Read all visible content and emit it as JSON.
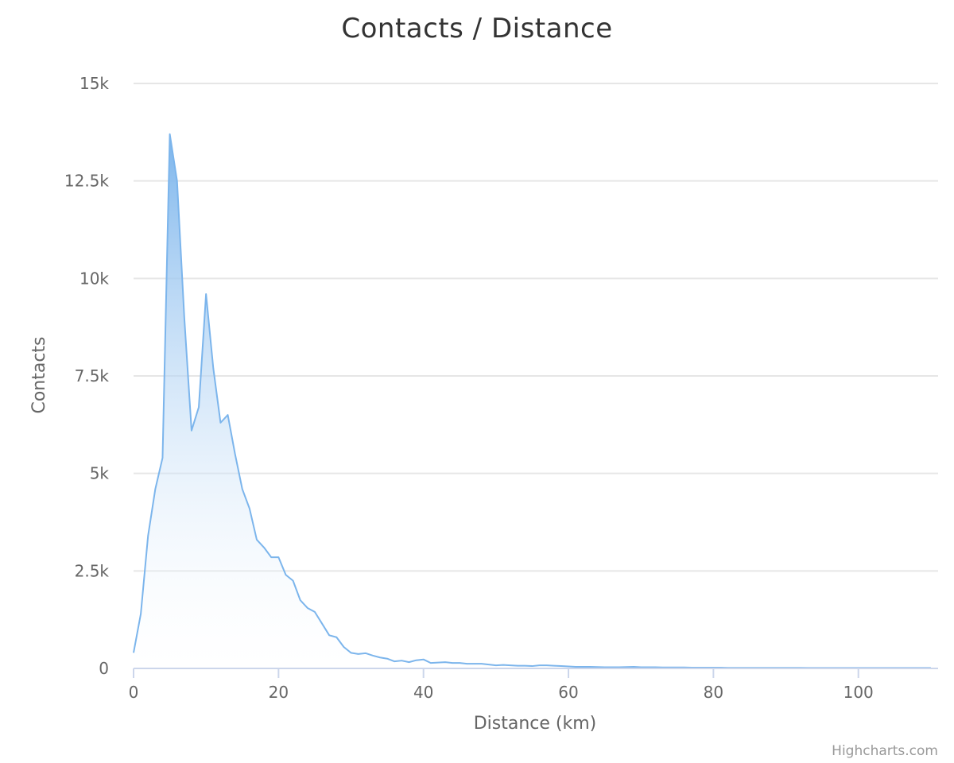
{
  "page": {
    "credits": "Highcharts.com"
  },
  "chart_data": {
    "type": "area",
    "title": "Contacts / Distance",
    "xlabel": "Distance (km)",
    "ylabel": "Contacts",
    "xlim": [
      0,
      111
    ],
    "ylim": [
      0,
      15000
    ],
    "x_ticks": [
      0,
      20,
      40,
      60,
      80,
      100
    ],
    "x_tick_labels": [
      "0",
      "20",
      "40",
      "60",
      "80",
      "100"
    ],
    "y_ticks": [
      0,
      2500,
      5000,
      7500,
      10000,
      12500,
      15000
    ],
    "y_tick_labels": [
      "0",
      "2.5k",
      "5k",
      "7.5k",
      "10k",
      "12.5k",
      "15k"
    ],
    "grid": true,
    "legend": "none",
    "colors": {
      "series": "#7cb5ec",
      "fill_top": "#7cb5ec",
      "fill_bottom": "#ffffff"
    },
    "series": [
      {
        "x": [
          0,
          1,
          2,
          3,
          4,
          5,
          6,
          7,
          8,
          9,
          10,
          11,
          12,
          13,
          14,
          15,
          16,
          17,
          18,
          19,
          20,
          21,
          22,
          23,
          24,
          25,
          26,
          27,
          28,
          29,
          30,
          31,
          32,
          33,
          34,
          35,
          36,
          37,
          38,
          39,
          40,
          41,
          42,
          43,
          44,
          45,
          46,
          47,
          48,
          49,
          50,
          51,
          52,
          53,
          54,
          55,
          56,
          57,
          58,
          59,
          60,
          61,
          62,
          63,
          64,
          65,
          66,
          67,
          68,
          69,
          70,
          71,
          72,
          73,
          74,
          75,
          76,
          77,
          78,
          79,
          80,
          81,
          82,
          83,
          84,
          85,
          86,
          87,
          88,
          89,
          90,
          91,
          92,
          93,
          94,
          95,
          96,
          97,
          98,
          99,
          100,
          101,
          102,
          103,
          104,
          105,
          106,
          107,
          108,
          109,
          110
        ],
        "values": [
          400,
          1400,
          3400,
          4600,
          5400,
          13700,
          12500,
          9000,
          6100,
          6700,
          9600,
          7700,
          6300,
          6500,
          5500,
          4600,
          4100,
          3300,
          3100,
          2850,
          2850,
          2400,
          2250,
          1750,
          1550,
          1450,
          1150,
          850,
          800,
          550,
          400,
          370,
          390,
          330,
          280,
          250,
          180,
          200,
          160,
          210,
          230,
          140,
          150,
          160,
          140,
          140,
          120,
          120,
          120,
          100,
          80,
          90,
          80,
          70,
          70,
          60,
          80,
          80,
          70,
          60,
          50,
          40,
          40,
          40,
          35,
          30,
          30,
          30,
          35,
          40,
          30,
          30,
          30,
          25,
          25,
          25,
          25,
          20,
          20,
          20,
          20,
          20,
          15,
          15,
          15,
          15,
          15,
          15,
          15,
          15,
          15,
          15,
          15,
          12,
          12,
          12,
          12,
          12,
          12,
          12,
          12,
          12,
          12,
          12,
          12,
          12,
          12,
          12,
          12,
          12,
          12
        ]
      }
    ]
  }
}
